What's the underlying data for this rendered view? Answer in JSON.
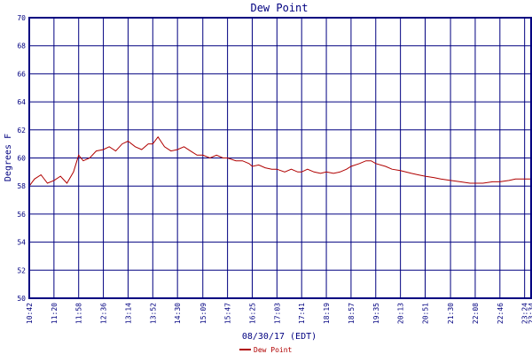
{
  "chart_data": {
    "type": "line",
    "title": "Dew Point",
    "xlabel": "08/30/17 (EDT)",
    "ylabel": "Degrees F",
    "ylim": [
      50,
      70
    ],
    "y_ticks": [
      "50",
      "52",
      "54",
      "56",
      "58",
      "60",
      "62",
      "64",
      "66",
      "68",
      "70"
    ],
    "x_ticks": [
      "10:42",
      "11:20",
      "11:58",
      "12:36",
      "13:14",
      "13:52",
      "14:30",
      "15:09",
      "15:47",
      "16:25",
      "17:03",
      "17:41",
      "18:19",
      "18:57",
      "19:35",
      "20:13",
      "20:51",
      "21:30",
      "22:08",
      "22:46",
      "23:24",
      "23:34"
    ],
    "grid": true,
    "legend_position": "bottom-center",
    "colors": {
      "line": "#b00000",
      "grid": "#000080",
      "text": "#000080"
    },
    "series": [
      {
        "name": "Dew Point",
        "x": [
          "10:42",
          "10:50",
          "11:00",
          "11:10",
          "11:20",
          "11:30",
          "11:40",
          "11:50",
          "11:58",
          "12:05",
          "12:15",
          "12:25",
          "12:36",
          "12:45",
          "12:55",
          "13:05",
          "13:14",
          "13:25",
          "13:35",
          "13:45",
          "13:52",
          "14:00",
          "14:10",
          "14:20",
          "14:30",
          "14:40",
          "14:50",
          "15:00",
          "15:09",
          "15:20",
          "15:30",
          "15:40",
          "15:47",
          "16:00",
          "16:10",
          "16:20",
          "16:25",
          "16:35",
          "16:45",
          "16:55",
          "17:03",
          "17:15",
          "17:25",
          "17:35",
          "17:41",
          "17:50",
          "18:00",
          "18:10",
          "18:19",
          "18:30",
          "18:40",
          "18:50",
          "18:57",
          "19:10",
          "19:20",
          "19:28",
          "19:35",
          "19:50",
          "20:00",
          "20:13",
          "20:30",
          "20:40",
          "20:51",
          "21:05",
          "21:15",
          "21:30",
          "21:45",
          "22:00",
          "22:08",
          "22:20",
          "22:35",
          "22:46",
          "23:00",
          "23:10",
          "23:24",
          "23:34"
        ],
        "values": [
          58.0,
          58.5,
          58.8,
          58.2,
          58.4,
          58.7,
          58.2,
          59.0,
          60.2,
          59.8,
          60.0,
          60.5,
          60.6,
          60.8,
          60.5,
          61.0,
          61.2,
          60.8,
          60.6,
          61.0,
          61.0,
          61.5,
          60.8,
          60.5,
          60.6,
          60.8,
          60.5,
          60.2,
          60.2,
          60.0,
          60.2,
          60.0,
          60.0,
          59.8,
          59.8,
          59.6,
          59.4,
          59.5,
          59.3,
          59.2,
          59.2,
          59.0,
          59.2,
          59.0,
          59.0,
          59.2,
          59.0,
          58.9,
          59.0,
          58.9,
          59.0,
          59.2,
          59.4,
          59.6,
          59.8,
          59.8,
          59.6,
          59.4,
          59.2,
          59.1,
          58.9,
          58.8,
          58.7,
          58.6,
          58.5,
          58.4,
          58.3,
          58.2,
          58.2,
          58.2,
          58.3,
          58.3,
          58.4,
          58.5,
          58.5,
          58.5
        ]
      }
    ]
  }
}
